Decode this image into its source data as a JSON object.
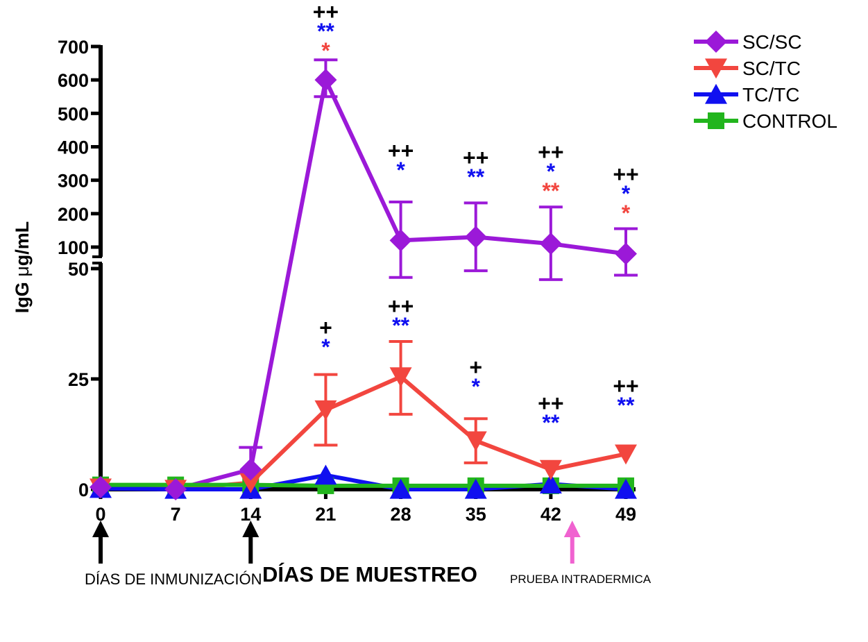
{
  "chart_data": {
    "type": "line",
    "ylabel_prefix": "IgG ",
    "ylabel_mu": "μ",
    "ylabel_suffix": "g/mL",
    "xlabel": "DÍAS DE MUESTREO",
    "x": [
      0,
      7,
      14,
      21,
      28,
      35,
      42,
      49
    ],
    "x_tick_labels": [
      "0",
      "7",
      "14",
      "21",
      "28",
      "35",
      "42",
      "49"
    ],
    "y_axis_broken": true,
    "y_lower_ticks": [
      "0",
      "25",
      "50"
    ],
    "y_upper_ticks": [
      "100",
      "200",
      "300",
      "400",
      "500",
      "600",
      "700"
    ],
    "ylim_lower": [
      0,
      50
    ],
    "ylim_upper": [
      80,
      700
    ],
    "grid": false,
    "legend_position": "top-right",
    "series": [
      {
        "name": "SC/SC",
        "color": "#9b19d8",
        "marker": "diamond",
        "values": [
          0.5,
          0,
          4.5,
          600,
          120,
          130,
          110,
          80
        ],
        "error_upper": [
          null,
          null,
          9.5,
          660,
          235,
          232,
          220,
          155
        ],
        "error_lower": [
          null,
          null,
          null,
          550,
          48,
          49.5,
          47.5,
          48.5
        ]
      },
      {
        "name": "SC/TC",
        "color": "#f2463f",
        "marker": "triangle-down",
        "values": [
          0.3,
          0,
          1.5,
          18,
          25.5,
          11,
          4.5,
          8
        ],
        "error_upper": [
          null,
          null,
          null,
          26,
          33.5,
          16,
          null,
          null
        ],
        "error_lower": [
          null,
          null,
          null,
          10,
          17,
          6,
          null,
          null
        ]
      },
      {
        "name": "TC/TC",
        "color": "#1010f0",
        "marker": "triangle-up",
        "values": [
          0.2,
          0,
          0,
          3.2,
          0,
          0,
          1.2,
          0
        ],
        "error_upper": [
          null,
          null,
          null,
          null,
          null,
          null,
          null,
          null
        ],
        "error_lower": [
          null,
          null,
          null,
          null,
          null,
          null,
          null,
          null
        ]
      },
      {
        "name": "CONTROL",
        "color": "#22b51d",
        "marker": "square",
        "values": [
          1,
          1,
          1,
          0.8,
          0.8,
          0.8,
          0.8,
          0.8
        ],
        "error_upper": [
          null,
          null,
          null,
          null,
          null,
          null,
          null,
          null
        ],
        "error_lower": [
          null,
          null,
          null,
          null,
          null,
          null,
          null,
          null
        ]
      }
    ],
    "significance": [
      {
        "day": 21,
        "segment": "upper",
        "lines": [
          {
            "text": "++",
            "color": "#000000"
          },
          {
            "text": "**",
            "color": "#1010f0"
          },
          {
            "text": "*",
            "color": "#f2463f"
          }
        ]
      },
      {
        "day": 28,
        "segment": "upper",
        "lines": [
          {
            "text": "++",
            "color": "#000000"
          },
          {
            "text": "*",
            "color": "#1010f0"
          }
        ]
      },
      {
        "day": 35,
        "segment": "upper",
        "lines": [
          {
            "text": "++",
            "color": "#000000"
          },
          {
            "text": "**",
            "color": "#1010f0"
          }
        ]
      },
      {
        "day": 42,
        "segment": "upper",
        "lines": [
          {
            "text": "++",
            "color": "#000000"
          },
          {
            "text": "*",
            "color": "#1010f0"
          },
          {
            "text": "**",
            "color": "#f2463f"
          }
        ]
      },
      {
        "day": 49,
        "segment": "upper",
        "lines": [
          {
            "text": "++",
            "color": "#000000"
          },
          {
            "text": "*",
            "color": "#1010f0"
          },
          {
            "text": "*",
            "color": "#f2463f"
          }
        ]
      },
      {
        "day": 21,
        "segment": "lower",
        "lines": [
          {
            "text": "+",
            "color": "#000000"
          },
          {
            "text": "*",
            "color": "#1010f0"
          }
        ]
      },
      {
        "day": 28,
        "segment": "lower",
        "lines": [
          {
            "text": "++",
            "color": "#000000"
          },
          {
            "text": "**",
            "color": "#1010f0"
          }
        ]
      },
      {
        "day": 35,
        "segment": "lower",
        "lines": [
          {
            "text": "+",
            "color": "#000000"
          },
          {
            "text": "*",
            "color": "#1010f0"
          }
        ]
      },
      {
        "day": 42,
        "segment": "lower",
        "lines": [
          {
            "text": "++",
            "color": "#000000"
          },
          {
            "text": "**",
            "color": "#1010f0"
          }
        ]
      },
      {
        "day": 49,
        "segment": "lower",
        "lines": [
          {
            "text": "++",
            "color": "#000000"
          },
          {
            "text": "**",
            "color": "#1010f0"
          }
        ]
      }
    ],
    "arrows": [
      {
        "day": 0,
        "color": "#000000"
      },
      {
        "day": 14,
        "color": "#000000"
      },
      {
        "day": 44,
        "color": "#f062d0"
      }
    ],
    "annotations": {
      "immunization": "DÍAS DE INMUNIZACIÓN",
      "intradermal": "PRUEBA INTRADERMICA"
    }
  }
}
